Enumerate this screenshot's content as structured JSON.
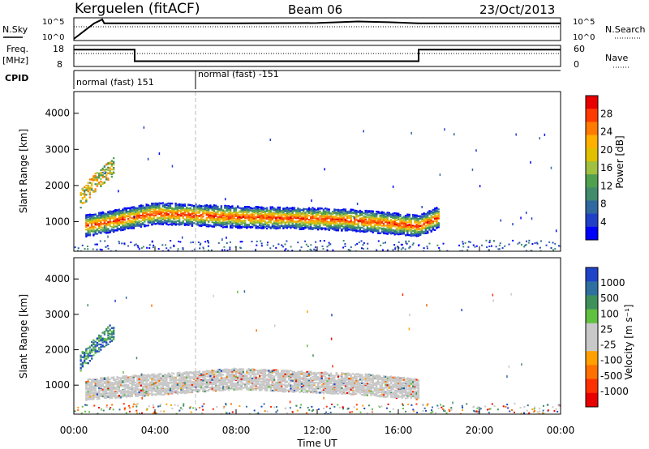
{
  "header": {
    "station": "Kerguelen (fitACF)",
    "beam": "Beam 06",
    "date": "23/Oct/2013"
  },
  "params": {
    "nsky_label": "N.Sky",
    "nsky_ticks": [
      "10^5",
      "10^0"
    ],
    "nsearch_label": "N.Search",
    "nsearch_ticks": [
      "10^5",
      "10^0"
    ],
    "freq_label": "Freq.",
    "freq_unit": "[MHz]",
    "freq_ticks": [
      "18",
      "8"
    ],
    "nave_label": "Nave",
    "nave_ticks": [
      "60",
      "0"
    ],
    "cpid_label": "CPID",
    "cpid_segments": [
      "normal (fast) 151",
      "normal (fast) -151"
    ]
  },
  "axes": {
    "ylabel": "Slant Range [km]",
    "xlabel": "Time UT",
    "yticks": [
      "4000",
      "3000",
      "2000",
      "1000"
    ],
    "xticks": [
      "00:00",
      "04:00",
      "08:00",
      "12:00",
      "16:00",
      "20:00",
      "00:00"
    ]
  },
  "colorbars": {
    "power": {
      "label": "Power [dB]",
      "ticks": [
        "28",
        "24",
        "20",
        "16",
        "12",
        "8",
        "4"
      ],
      "colors": [
        "#e80000",
        "#ff3a00",
        "#ff7a00",
        "#ffb000",
        "#e0c000",
        "#a0c040",
        "#50a050",
        "#408c6c",
        "#3068a0",
        "#2040c8",
        "#0000ff"
      ]
    },
    "velocity": {
      "label": "Velocity [m s⁻¹]",
      "ticks": [
        "1000",
        "500",
        "100",
        "25",
        "-25",
        "-100",
        "-500",
        "-1000"
      ],
      "colors": [
        "#2044c8",
        "#3070a0",
        "#40905c",
        "#60c040",
        "#c8c8c8",
        "#c8c8c8",
        "#ffa000",
        "#ff7000",
        "#ff3000",
        "#e80000"
      ]
    }
  },
  "chart_data": [
    {
      "type": "line",
      "title": "N.Sky / N.Search",
      "x_hours": [
        0,
        1,
        1.4,
        1.5,
        4,
        8,
        12,
        14,
        15.5,
        17,
        24
      ],
      "y": [
        1,
        10000,
        100000,
        10000,
        10000,
        10000,
        12000,
        30000,
        20000,
        10000,
        10000
      ]
    },
    {
      "type": "line",
      "title": "Freq. / Nave",
      "x_hours": [
        0,
        3,
        3,
        17,
        17,
        24
      ],
      "freq_mhz": [
        16,
        16,
        10.5,
        10.5,
        16,
        16
      ]
    },
    {
      "type": "heatmap",
      "title": "Power [dB]",
      "xlim_hours": [
        0,
        24
      ],
      "ylim_km": [
        180,
        4600
      ],
      "features": [
        {
          "name": "main echo band",
          "range_km_at_hours": [
            [
              0.5,
              900
            ],
            [
              4,
              1250
            ],
            [
              8,
              1150
            ],
            [
              12,
              1100
            ],
            [
              14,
              1050
            ],
            [
              17,
              900
            ],
            [
              18,
              1150
            ]
          ],
          "power_db": 20
        },
        {
          "name": "early high-range patch",
          "range_km_at_hours": [
            [
              0.2,
              1600
            ],
            [
              1,
              2100
            ],
            [
              2,
              2600
            ]
          ],
          "power_db": 14
        },
        {
          "name": "near-range band",
          "range_km_at_hours": [
            [
              0,
              250
            ],
            [
              24,
              250
            ]
          ],
          "power_db": 6
        }
      ]
    },
    {
      "type": "heatmap",
      "title": "Velocity [m s⁻¹]",
      "xlim_hours": [
        0,
        24
      ],
      "ylim_km": [
        180,
        4600
      ],
      "features": [
        {
          "name": "ground scatter band",
          "range_km_at_hours": [
            [
              0.5,
              900
            ],
            [
              8,
              1200
            ],
            [
              14,
              1050
            ],
            [
              17,
              900
            ]
          ],
          "velocity_ms": 0
        },
        {
          "name": "early ionospheric patch",
          "range_km_at_hours": [
            [
              0.2,
              1600
            ],
            [
              1,
              2100
            ],
            [
              2,
              2600
            ]
          ],
          "velocity_ms": 400
        }
      ]
    }
  ]
}
